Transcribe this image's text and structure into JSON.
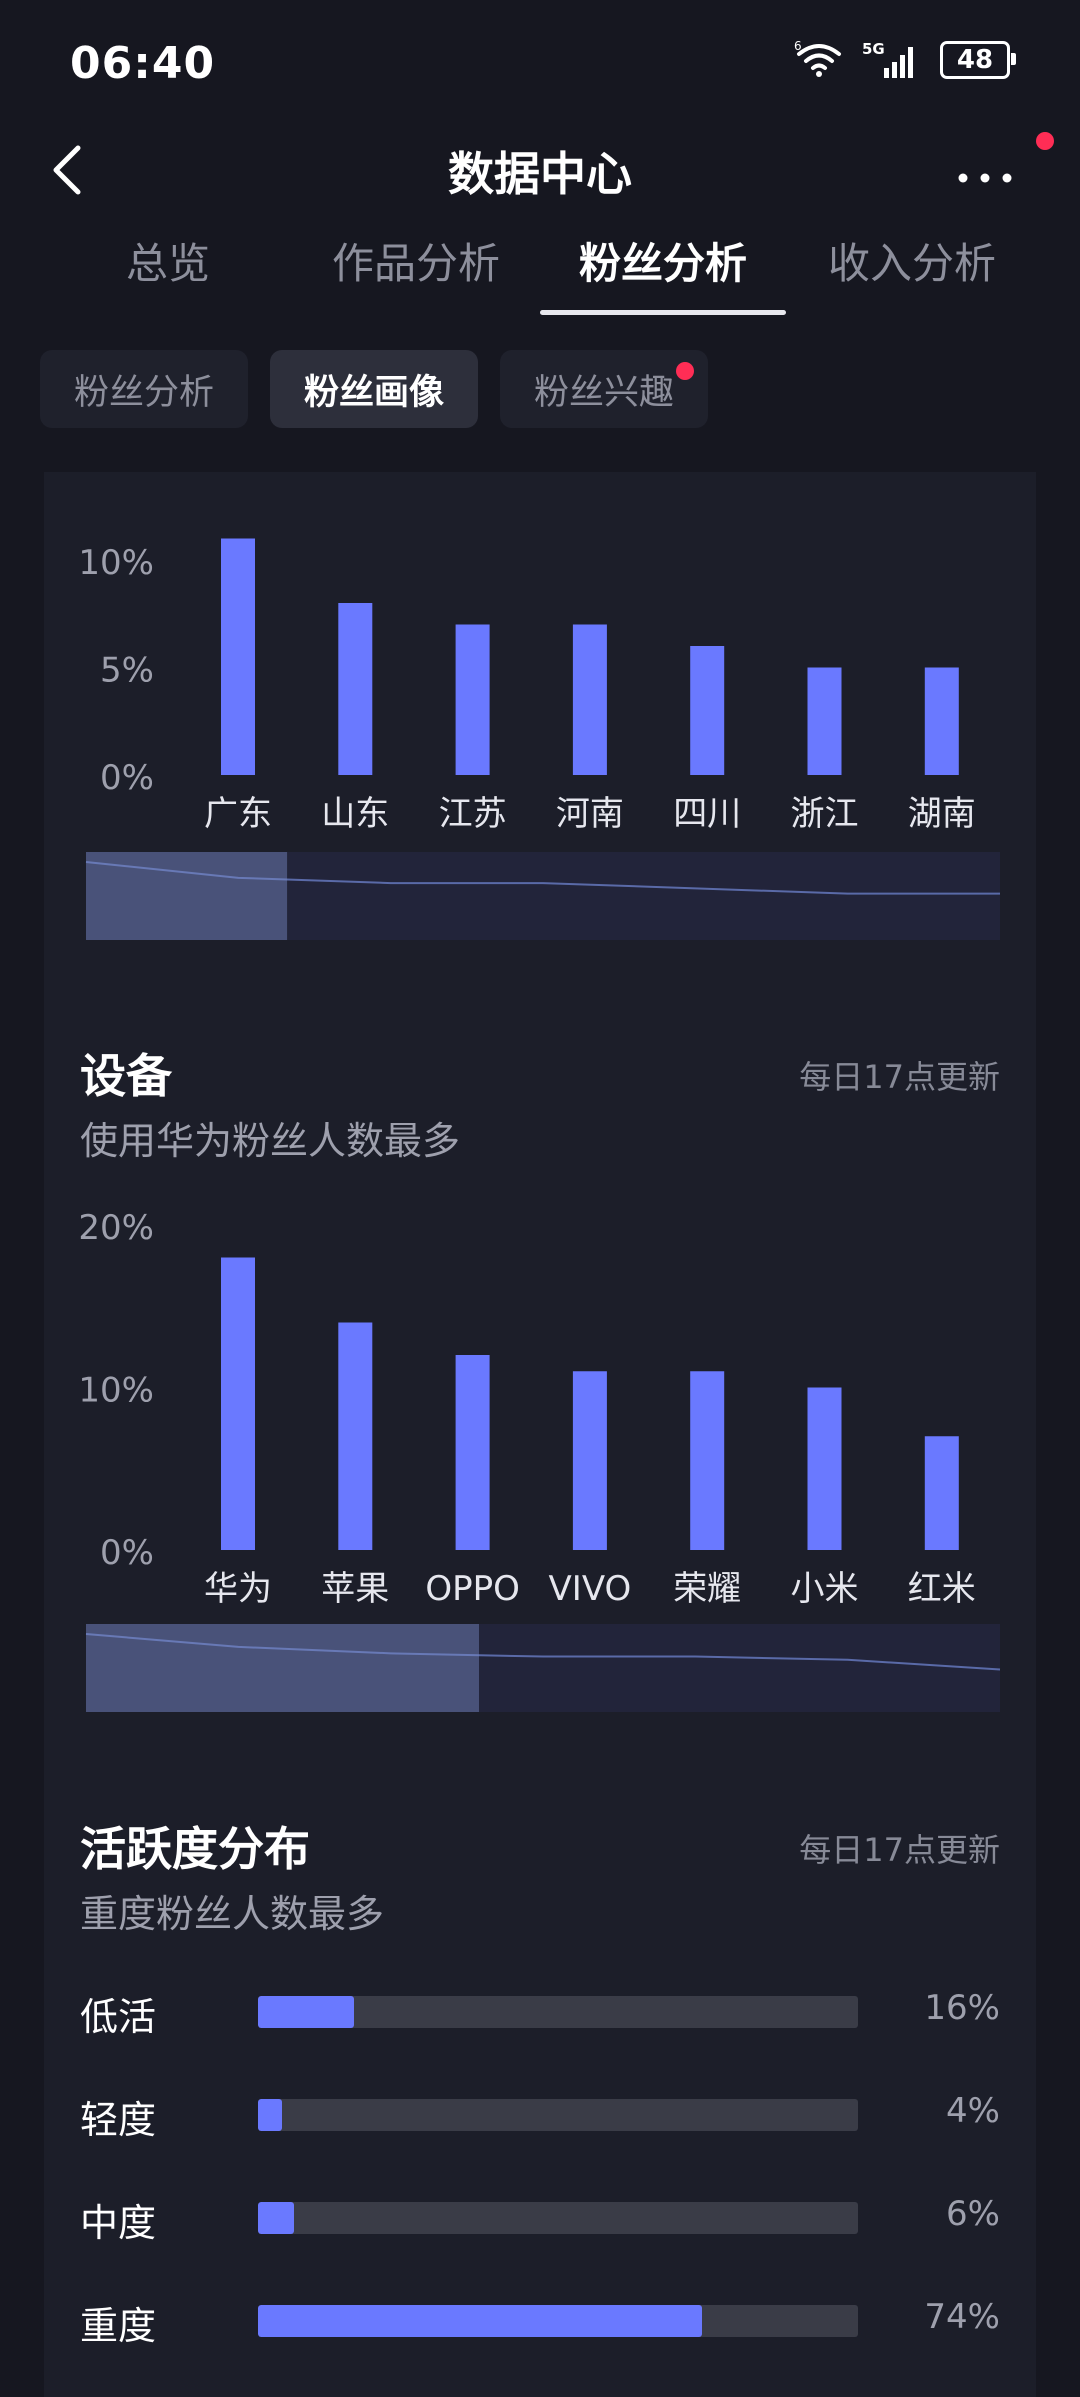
{
  "status": {
    "time": "06:40",
    "battery": "48",
    "network": "5G",
    "wifi_sub": "6"
  },
  "header": {
    "title": "数据中心"
  },
  "tabs": [
    {
      "label": "总览"
    },
    {
      "label": "作品分析"
    },
    {
      "label": "粉丝分析",
      "active": true
    },
    {
      "label": "收入分析"
    }
  ],
  "subtabs": [
    {
      "label": "粉丝分析"
    },
    {
      "label": "粉丝画像",
      "active": true
    },
    {
      "label": "粉丝兴趣",
      "badge": true
    }
  ],
  "region": {
    "chart_data": {
      "type": "bar",
      "categories": [
        "广东",
        "山东",
        "江苏",
        "河南",
        "四川",
        "浙江",
        "湖南"
      ],
      "values": [
        11,
        8,
        7,
        7,
        6,
        5,
        5
      ],
      "ylim": [
        0,
        10
      ],
      "yticks": [
        "0%",
        "5%",
        "10%"
      ],
      "color": "#6a79ff",
      "navigator": {
        "range_start": 0,
        "range_end": 0.22
      }
    }
  },
  "device": {
    "title": "设备",
    "subtitle": "使用华为粉丝人数最多",
    "update": "每日17点更新",
    "chart_data": {
      "type": "bar",
      "categories": [
        "华为",
        "苹果",
        "OPPO",
        "VIVO",
        "荣耀",
        "小米",
        "红米"
      ],
      "values": [
        18,
        14,
        12,
        11,
        11,
        10,
        7
      ],
      "ylim": [
        0,
        20
      ],
      "yticks": [
        "0%",
        "10%",
        "20%"
      ],
      "color": "#6a79ff",
      "navigator": {
        "range_start": 0,
        "range_end": 0.43
      }
    }
  },
  "activity": {
    "title": "活跃度分布",
    "subtitle": "重度粉丝人数最多",
    "update": "每日17点更新",
    "rows": [
      {
        "label": "低活",
        "value": 16,
        "text": "16%"
      },
      {
        "label": "轻度",
        "value": 4,
        "text": "4%"
      },
      {
        "label": "中度",
        "value": 6,
        "text": "6%"
      },
      {
        "label": "重度",
        "value": 74,
        "text": "74%"
      }
    ],
    "color": "#6a79ff"
  }
}
